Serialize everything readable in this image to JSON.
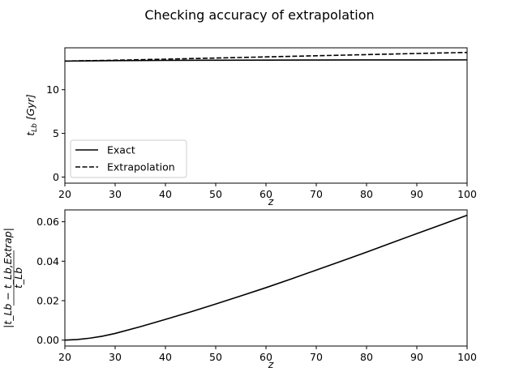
{
  "figure": {
    "title": "Checking accuracy of extrapolation"
  },
  "chart_data": [
    {
      "type": "line",
      "xlabel": "z",
      "ylabel": "t_Lb [Gyr]",
      "xlim": [
        20,
        100
      ],
      "ylim": [
        -0.7,
        14.8
      ],
      "xticks": [
        20,
        30,
        40,
        50,
        60,
        70,
        80,
        90,
        100
      ],
      "yticks": [
        0,
        5,
        10
      ],
      "legend_position": "lower-left",
      "series": [
        {
          "name": "Exact",
          "style": "solid",
          "color": "#000000",
          "x": [
            20,
            30,
            40,
            50,
            60,
            70,
            80,
            90,
            100
          ],
          "y": [
            13.28,
            13.33,
            13.36,
            13.38,
            13.39,
            13.4,
            13.41,
            13.415,
            13.42
          ]
        },
        {
          "name": "Extrapolation",
          "style": "dashed",
          "color": "#000000",
          "x": [
            20,
            30,
            40,
            50,
            60,
            70,
            80,
            90,
            100
          ],
          "y": [
            13.28,
            13.38,
            13.5,
            13.63,
            13.76,
            13.89,
            14.02,
            14.15,
            14.27
          ]
        }
      ]
    },
    {
      "type": "line",
      "xlabel": "z",
      "ylabel": "|t_Lb − t_Lb,Extrap| / t_Lb",
      "xlim": [
        20,
        100
      ],
      "ylim": [
        -0.003,
        0.066
      ],
      "xticks": [
        20,
        30,
        40,
        50,
        60,
        70,
        80,
        90,
        100
      ],
      "yticks": [
        "0.00",
        "0.02",
        "0.04",
        "0.06"
      ],
      "series": [
        {
          "style": "solid",
          "color": "#000000",
          "x": [
            20,
            22.5,
            25,
            27.5,
            30,
            35,
            40,
            45,
            50,
            55,
            60,
            65,
            70,
            75,
            80,
            85,
            90,
            95,
            100
          ],
          "y": [
            0.0,
            0.0003,
            0.001,
            0.002,
            0.0034,
            0.0068,
            0.0105,
            0.0143,
            0.0183,
            0.0224,
            0.0266,
            0.031,
            0.0355,
            0.04,
            0.0446,
            0.0493,
            0.054,
            0.0586,
            0.0633
          ]
        }
      ]
    }
  ]
}
